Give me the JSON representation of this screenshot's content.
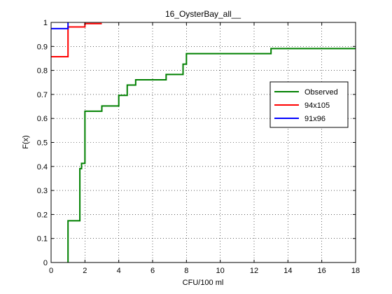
{
  "chart_data": {
    "type": "line",
    "title": "16_OysterBay_all__",
    "xlabel": "CFU/100 ml",
    "ylabel": "F(x)",
    "xlim": [
      0,
      18
    ],
    "ylim": [
      0,
      1
    ],
    "xticks": [
      0,
      2,
      4,
      6,
      8,
      10,
      12,
      14,
      16,
      18
    ],
    "yticks": [
      0,
      0.1,
      0.2,
      0.3,
      0.4,
      0.5,
      0.6,
      0.7,
      0.8,
      0.9,
      1
    ],
    "xtick_labels": [
      "0",
      "2",
      "4",
      "6",
      "8",
      "10",
      "12",
      "14",
      "16",
      "18"
    ],
    "ytick_labels": [
      "0",
      "0.1",
      "0.2",
      "0.3",
      "0.4",
      "0.5",
      "0.6",
      "0.7",
      "0.8",
      "0.9",
      "1"
    ],
    "grid": true,
    "legend_position": "right",
    "series": [
      {
        "name": "Observed",
        "color": "#008000",
        "step": true,
        "x": [
          1,
          1,
          1.7,
          1.7,
          1.8,
          1.8,
          2,
          2,
          3,
          3,
          4,
          4,
          4.5,
          4.5,
          5,
          5,
          6.8,
          6.8,
          7.8,
          7.8,
          8,
          8,
          13,
          13,
          18
        ],
        "y": [
          0,
          0.174,
          0.174,
          0.391,
          0.391,
          0.413,
          0.413,
          0.63,
          0.63,
          0.652,
          0.652,
          0.696,
          0.696,
          0.739,
          0.739,
          0.761,
          0.761,
          0.783,
          0.783,
          0.826,
          0.826,
          0.87,
          0.87,
          0.891,
          0.891
        ]
      },
      {
        "name": "94x105",
        "color": "#ff0000",
        "step": true,
        "x": [
          0,
          1,
          1,
          2,
          2,
          3
        ],
        "y": [
          0.857,
          0.857,
          0.981,
          0.981,
          0.995,
          0.995
        ]
      },
      {
        "name": "91x96",
        "color": "#0000ff",
        "step": true,
        "x": [
          0,
          1,
          1
        ],
        "y": [
          0.974,
          0.974,
          1
        ]
      }
    ]
  }
}
